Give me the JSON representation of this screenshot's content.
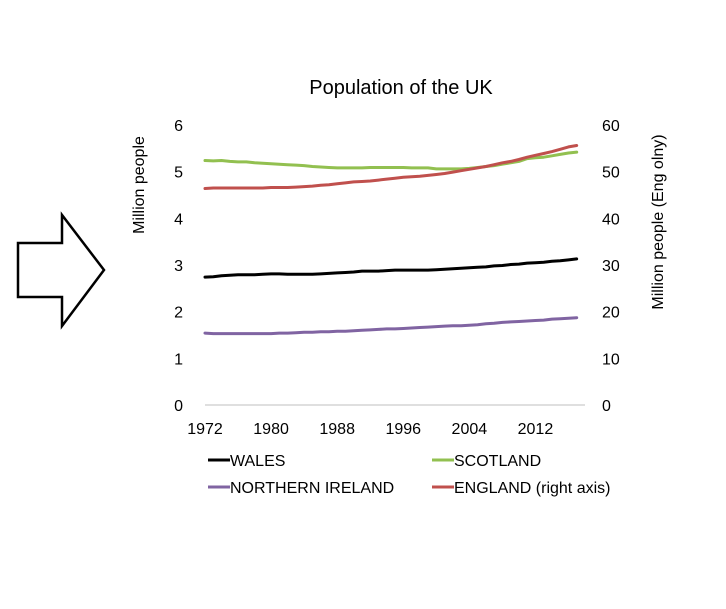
{
  "arrow": {
    "icon": "right-arrow-icon"
  },
  "chart_data": {
    "type": "line",
    "title": "Population of the UK",
    "ylabel": "Million people",
    "y2label": "Million people (Eng olny)",
    "xlabel": "",
    "x_tick_labels": [
      "1972",
      "1980",
      "1988",
      "1996",
      "2004",
      "2012"
    ],
    "x_ticks": [
      1972,
      1980,
      1988,
      1996,
      2004,
      2012
    ],
    "xlim": [
      1972,
      2018
    ],
    "ylim": [
      0,
      6
    ],
    "y2lim": [
      0,
      60
    ],
    "y_ticks": [
      0,
      1,
      2,
      3,
      4,
      5,
      6
    ],
    "y2_ticks": [
      0,
      10,
      20,
      30,
      40,
      50,
      60
    ],
    "grid": false,
    "legend_placement": "bottom",
    "x": [
      1972,
      1973,
      1974,
      1975,
      1976,
      1977,
      1978,
      1979,
      1980,
      1981,
      1982,
      1983,
      1984,
      1985,
      1986,
      1987,
      1988,
      1989,
      1990,
      1991,
      1992,
      1993,
      1994,
      1995,
      1996,
      1997,
      1998,
      1999,
      2000,
      2001,
      2002,
      2003,
      2004,
      2005,
      2006,
      2007,
      2008,
      2009,
      2010,
      2011,
      2012,
      2013,
      2014,
      2015,
      2016,
      2017
    ],
    "series": [
      {
        "name": "WALES",
        "axis": "left",
        "color": "#000000",
        "values": [
          2.74,
          2.75,
          2.77,
          2.78,
          2.79,
          2.79,
          2.79,
          2.8,
          2.81,
          2.81,
          2.8,
          2.8,
          2.8,
          2.8,
          2.81,
          2.82,
          2.83,
          2.84,
          2.85,
          2.87,
          2.87,
          2.87,
          2.88,
          2.89,
          2.89,
          2.89,
          2.89,
          2.89,
          2.9,
          2.91,
          2.92,
          2.93,
          2.94,
          2.95,
          2.96,
          2.98,
          2.99,
          3.01,
          3.02,
          3.04,
          3.05,
          3.06,
          3.08,
          3.09,
          3.11,
          3.13
        ]
      },
      {
        "name": "SCOTLAND",
        "axis": "left",
        "color": "#92c050",
        "values": [
          5.24,
          5.23,
          5.24,
          5.22,
          5.21,
          5.21,
          5.19,
          5.18,
          5.17,
          5.16,
          5.15,
          5.14,
          5.13,
          5.11,
          5.1,
          5.09,
          5.08,
          5.08,
          5.08,
          5.08,
          5.09,
          5.09,
          5.09,
          5.09,
          5.09,
          5.08,
          5.08,
          5.08,
          5.06,
          5.06,
          5.06,
          5.06,
          5.07,
          5.09,
          5.11,
          5.13,
          5.16,
          5.19,
          5.22,
          5.28,
          5.3,
          5.31,
          5.34,
          5.37,
          5.4,
          5.42
        ]
      },
      {
        "name": "NORTHERN IRELAND",
        "axis": "left",
        "color": "#8064a2",
        "values": [
          1.54,
          1.53,
          1.53,
          1.53,
          1.53,
          1.53,
          1.53,
          1.53,
          1.53,
          1.54,
          1.54,
          1.55,
          1.56,
          1.56,
          1.57,
          1.57,
          1.58,
          1.58,
          1.59,
          1.6,
          1.61,
          1.62,
          1.63,
          1.63,
          1.64,
          1.65,
          1.66,
          1.67,
          1.68,
          1.69,
          1.7,
          1.7,
          1.71,
          1.72,
          1.74,
          1.75,
          1.77,
          1.78,
          1.79,
          1.8,
          1.81,
          1.82,
          1.84,
          1.85,
          1.86,
          1.87
        ]
      },
      {
        "name": "ENGLAND (right axis)",
        "axis": "right",
        "color": "#c0504d",
        "values": [
          46.4,
          46.5,
          46.5,
          46.5,
          46.5,
          46.5,
          46.5,
          46.5,
          46.6,
          46.6,
          46.6,
          46.7,
          46.8,
          46.9,
          47.1,
          47.2,
          47.4,
          47.6,
          47.8,
          47.9,
          48.0,
          48.2,
          48.4,
          48.6,
          48.8,
          48.9,
          49.0,
          49.2,
          49.4,
          49.6,
          49.9,
          50.2,
          50.5,
          50.8,
          51.1,
          51.5,
          51.9,
          52.2,
          52.6,
          53.1,
          53.5,
          53.9,
          54.3,
          54.8,
          55.3,
          55.6
        ]
      }
    ]
  }
}
